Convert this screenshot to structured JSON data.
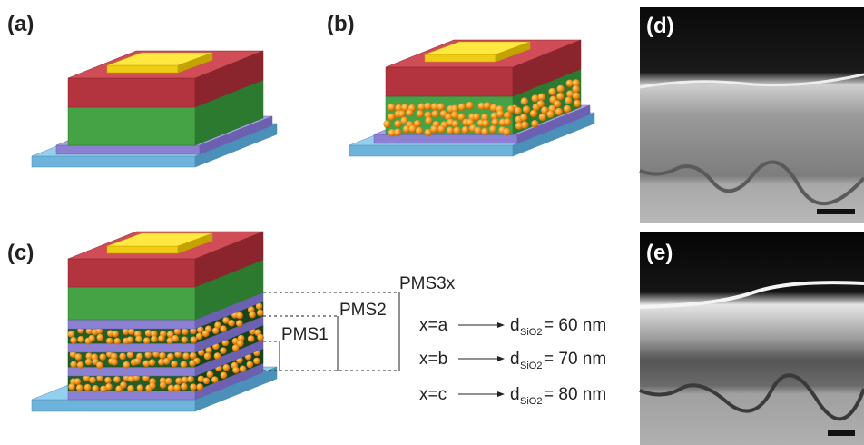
{
  "panels": [
    {
      "label": "(a)"
    },
    {
      "label": "(b)"
    },
    {
      "label": "(c)"
    },
    {
      "label": "(d)"
    },
    {
      "label": "(e)"
    }
  ],
  "brackets": [
    {
      "label": "PMS3x"
    },
    {
      "label": "PMS2"
    },
    {
      "label": "PMS1"
    }
  ],
  "equations": [
    {
      "condition": "x=a",
      "symbol": "d",
      "subscript": "SiO2",
      "result": "= 60 nm"
    },
    {
      "condition": "x=b",
      "symbol": "d",
      "subscript": "SiO2",
      "result": "= 70 nm"
    },
    {
      "condition": "x=c",
      "symbol": "d",
      "subscript": "SiO2",
      "result": "= 80 nm"
    }
  ]
}
